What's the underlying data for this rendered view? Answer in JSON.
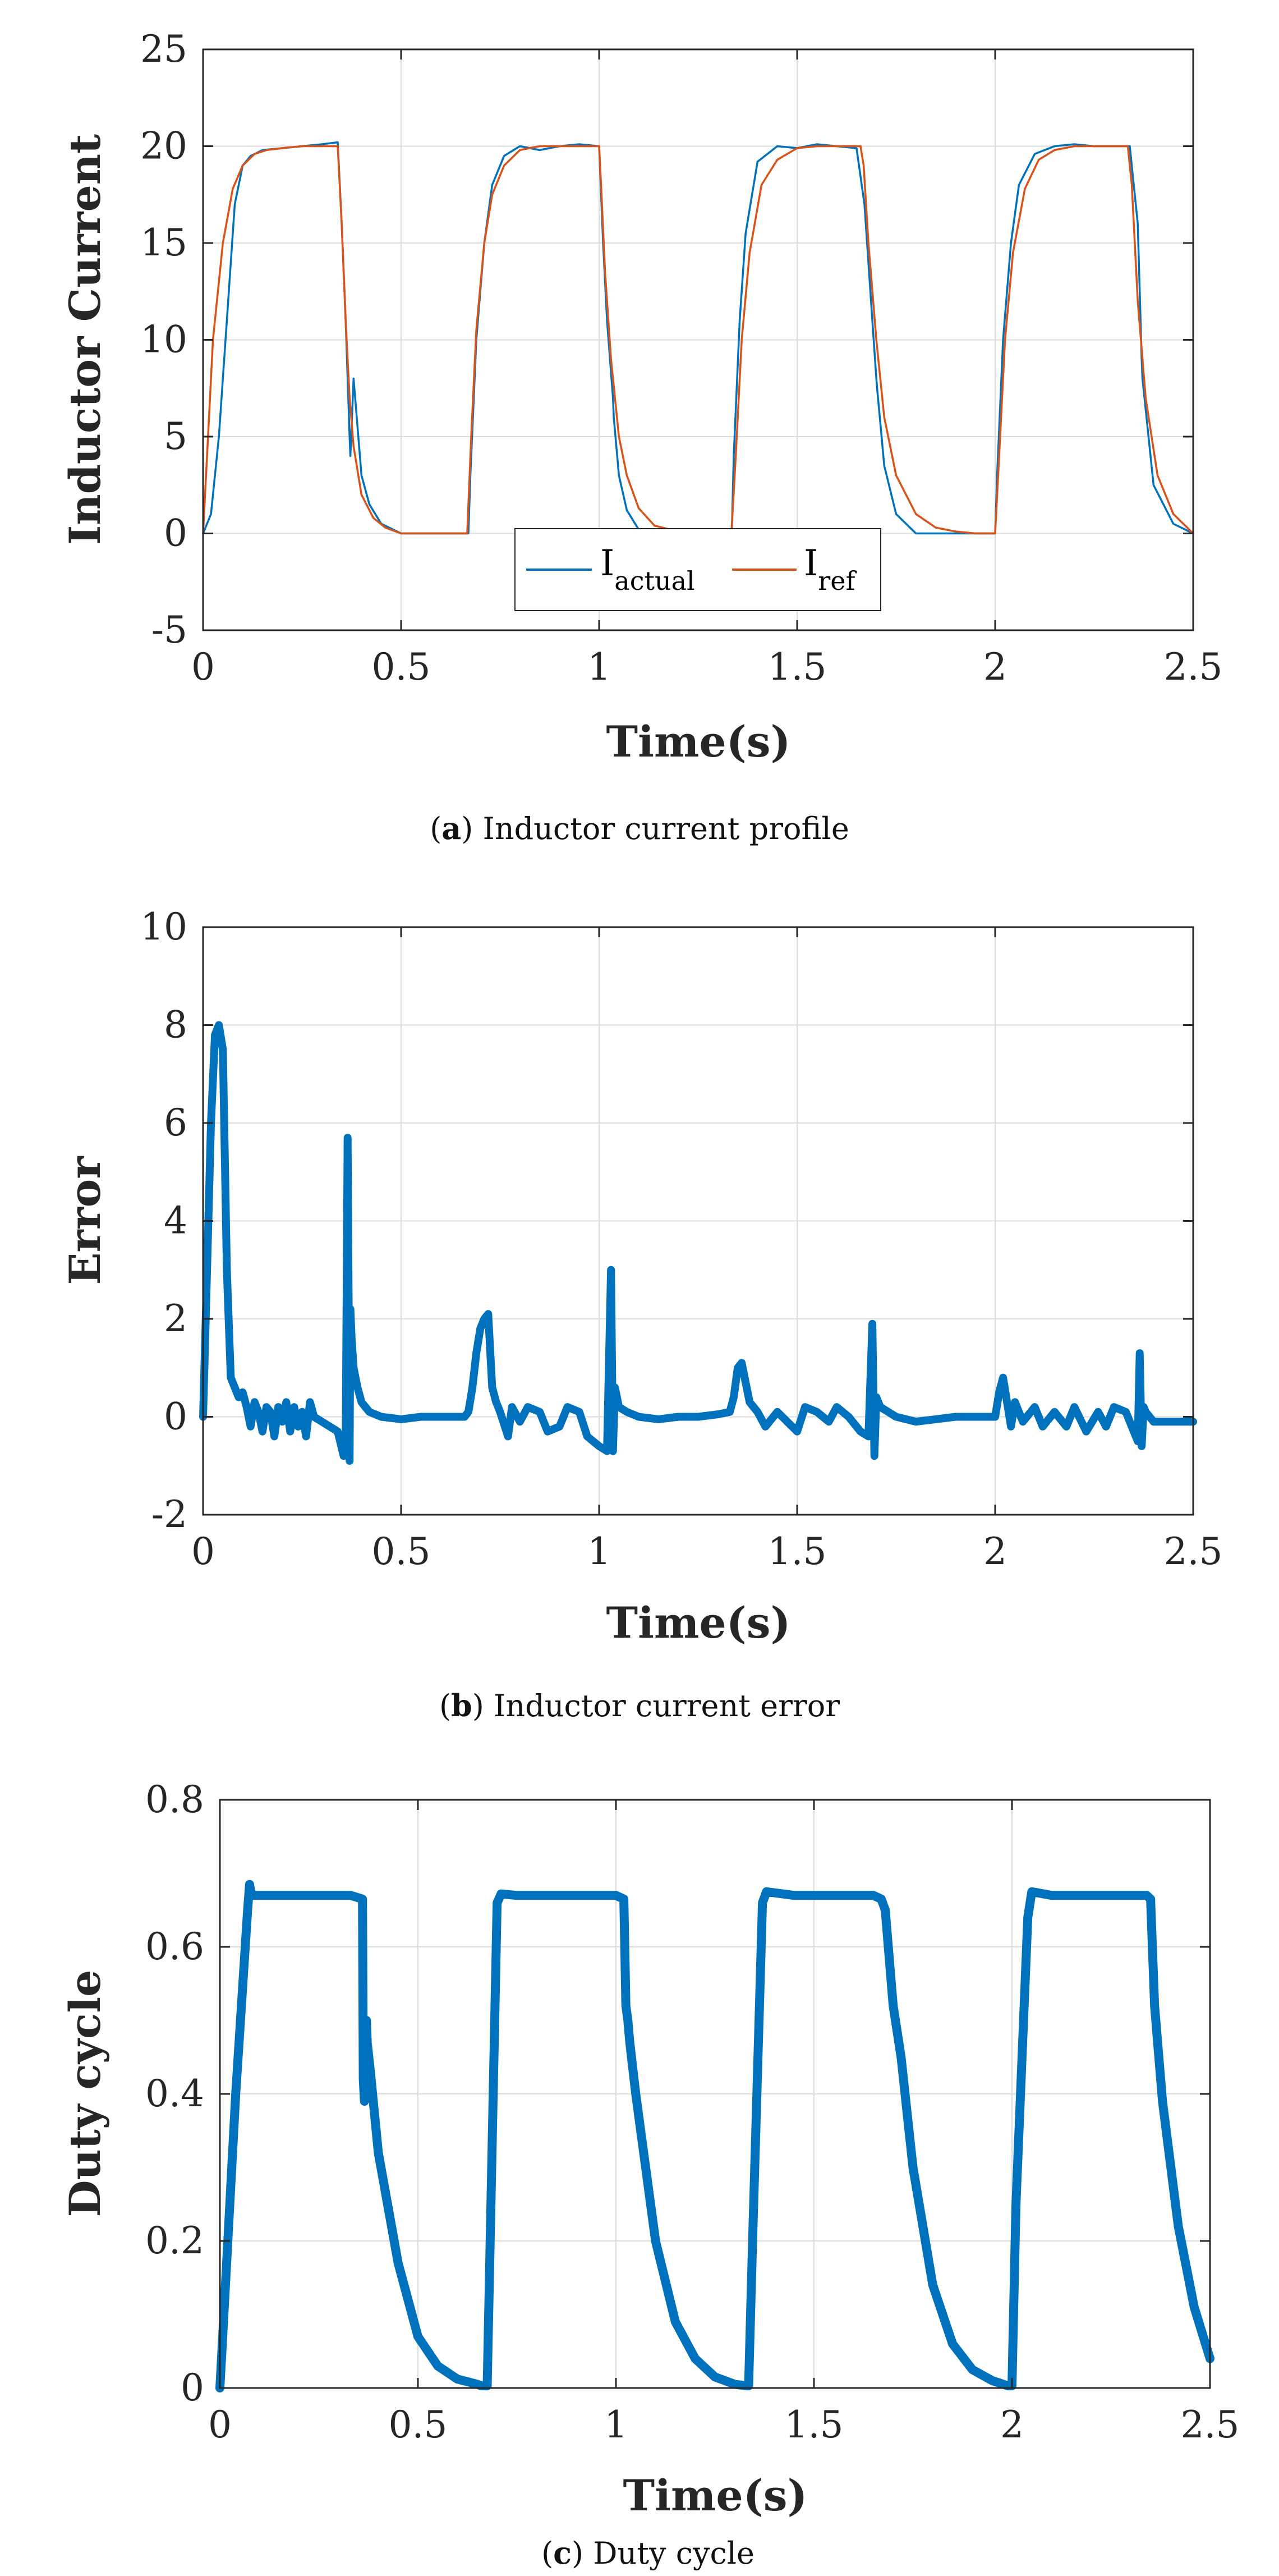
{
  "colors": {
    "actual": "#0072BD",
    "ref": "#D95319",
    "grid": "#dcdcdc",
    "axis": "#262626"
  },
  "chart_data": [
    {
      "id": "a",
      "type": "line",
      "caption": {
        "letter": "a",
        "text": "Inductor current profile"
      },
      "xlabel": "Time(s)",
      "ylabel": "Inductor Current",
      "xlim": [
        0,
        2.5
      ],
      "ylim": [
        -5,
        25
      ],
      "xticks": [
        "0",
        "0.5",
        "1",
        "1.5",
        "2",
        "2.5"
      ],
      "yticks": [
        "-5",
        "0",
        "5",
        "10",
        "15",
        "20",
        "25"
      ],
      "grid": true,
      "legend": {
        "placement": "bottom-center",
        "entries": [
          {
            "main": "I",
            "sub": "actual"
          },
          {
            "main": "I",
            "sub": "ref"
          }
        ]
      },
      "series": [
        {
          "name": "I_actual",
          "color": "#0072BD",
          "x": [
            0,
            0.02,
            0.04,
            0.06,
            0.08,
            0.1,
            0.12,
            0.15,
            0.2,
            0.25,
            0.3,
            0.34,
            0.35,
            0.36,
            0.37,
            0.372,
            0.38,
            0.4,
            0.42,
            0.45,
            0.5,
            0.55,
            0.6,
            0.67,
            0.675,
            0.69,
            0.71,
            0.73,
            0.76,
            0.8,
            0.85,
            0.9,
            0.95,
            1.0,
            1.01,
            1.02,
            1.035,
            1.037,
            1.05,
            1.07,
            1.1,
            1.15,
            1.2,
            1.25,
            1.3,
            1.335,
            1.34,
            1.355,
            1.37,
            1.4,
            1.45,
            1.5,
            1.55,
            1.6,
            1.65,
            1.67,
            1.69,
            1.7,
            1.702,
            1.72,
            1.75,
            1.8,
            1.85,
            1.9,
            1.95,
            2.0,
            2.005,
            2.02,
            2.04,
            2.06,
            2.1,
            2.15,
            2.2,
            2.25,
            2.3,
            2.34,
            2.36,
            2.37,
            2.372,
            2.4,
            2.45,
            2.5
          ],
          "y": [
            0,
            1,
            5,
            11,
            17,
            19,
            19.5,
            19.8,
            19.9,
            20,
            20.1,
            20.2,
            16,
            11,
            5,
            4,
            8,
            3,
            1.5,
            0.5,
            0,
            0,
            0,
            0,
            3,
            10,
            15,
            18,
            19.5,
            20,
            19.8,
            20,
            20.1,
            20,
            15,
            11,
            7,
            6,
            3,
            1.2,
            0.2,
            0,
            0,
            0,
            0,
            0,
            4,
            11,
            15.5,
            19.2,
            20,
            19.9,
            20.1,
            20,
            19.9,
            17,
            11,
            8,
            7.5,
            3.5,
            1,
            0,
            0,
            0,
            0,
            0,
            3,
            10,
            15,
            18,
            19.6,
            20,
            20.1,
            20,
            20,
            20,
            16,
            9,
            8,
            2.5,
            0.5,
            0
          ]
        },
        {
          "name": "I_ref",
          "color": "#D95319",
          "x": [
            0,
            0.01,
            0.025,
            0.05,
            0.075,
            0.1,
            0.13,
            0.16,
            0.2,
            0.25,
            0.3,
            0.34,
            0.35,
            0.36,
            0.37,
            0.38,
            0.4,
            0.43,
            0.46,
            0.5,
            0.55,
            0.6,
            0.667,
            0.677,
            0.69,
            0.71,
            0.73,
            0.76,
            0.8,
            0.85,
            0.9,
            0.95,
            1.0,
            1.005,
            1.015,
            1.03,
            1.05,
            1.07,
            1.1,
            1.14,
            1.2,
            1.25,
            1.3,
            1.334,
            1.345,
            1.36,
            1.38,
            1.41,
            1.45,
            1.5,
            1.55,
            1.6,
            1.66,
            1.668,
            1.68,
            1.7,
            1.72,
            1.75,
            1.8,
            1.85,
            1.9,
            1.95,
            2.0,
            2.01,
            2.025,
            2.045,
            2.075,
            2.11,
            2.15,
            2.2,
            2.25,
            2.3,
            2.335,
            2.345,
            2.36,
            2.38,
            2.41,
            2.45,
            2.5
          ],
          "y": [
            0,
            4,
            10,
            15,
            17.8,
            19,
            19.6,
            19.8,
            19.9,
            20,
            20,
            20,
            16,
            11,
            7,
            4.5,
            2,
            0.8,
            0.3,
            0,
            0,
            0,
            0,
            5,
            10.5,
            15,
            17.5,
            19,
            19.8,
            20,
            20,
            20,
            20,
            18,
            13.5,
            9,
            5,
            3,
            1.3,
            0.4,
            0.1,
            0,
            0,
            0,
            4,
            10,
            14.5,
            18,
            19.3,
            19.9,
            20,
            20,
            20,
            19,
            15,
            10,
            6,
            3,
            1,
            0.3,
            0.1,
            0,
            0,
            4,
            10,
            14.5,
            17.8,
            19.3,
            19.8,
            20,
            20,
            20,
            20,
            18,
            12,
            7,
            3,
            1,
            0
          ]
        }
      ]
    },
    {
      "id": "b",
      "type": "line",
      "caption": {
        "letter": "b",
        "text": "Inductor current error"
      },
      "xlabel": "Time(s)",
      "ylabel": "Error",
      "xlim": [
        0,
        2.5
      ],
      "ylim": [
        -2,
        10
      ],
      "xticks": [
        "0",
        "0.5",
        "1",
        "1.5",
        "2",
        "2.5"
      ],
      "yticks": [
        "-2",
        "0",
        "2",
        "4",
        "6",
        "8",
        "10"
      ],
      "grid": true,
      "series": [
        {
          "name": "Error",
          "color": "#0072BD",
          "x": [
            0,
            0.01,
            0.02,
            0.03,
            0.04,
            0.05,
            0.06,
            0.07,
            0.08,
            0.09,
            0.1,
            0.11,
            0.12,
            0.13,
            0.14,
            0.15,
            0.16,
            0.17,
            0.18,
            0.19,
            0.2,
            0.21,
            0.22,
            0.23,
            0.24,
            0.25,
            0.26,
            0.27,
            0.28,
            0.3,
            0.32,
            0.34,
            0.355,
            0.36,
            0.365,
            0.37,
            0.372,
            0.375,
            0.38,
            0.39,
            0.4,
            0.42,
            0.45,
            0.5,
            0.55,
            0.6,
            0.66,
            0.67,
            0.68,
            0.69,
            0.7,
            0.71,
            0.72,
            0.73,
            0.74,
            0.75,
            0.77,
            0.78,
            0.8,
            0.82,
            0.85,
            0.87,
            0.9,
            0.92,
            0.95,
            0.97,
            1.0,
            1.02,
            1.03,
            1.035,
            1.04,
            1.05,
            1.07,
            1.1,
            1.15,
            1.2,
            1.25,
            1.3,
            1.33,
            1.34,
            1.35,
            1.36,
            1.37,
            1.38,
            1.4,
            1.42,
            1.45,
            1.5,
            1.52,
            1.55,
            1.58,
            1.6,
            1.63,
            1.66,
            1.68,
            1.69,
            1.695,
            1.7,
            1.705,
            1.71,
            1.73,
            1.75,
            1.8,
            1.85,
            1.9,
            1.95,
            2.0,
            2.01,
            2.02,
            2.03,
            2.04,
            2.05,
            2.07,
            2.1,
            2.12,
            2.15,
            2.18,
            2.2,
            2.23,
            2.26,
            2.28,
            2.3,
            2.33,
            2.35,
            2.36,
            2.365,
            2.37,
            2.375,
            2.38,
            2.4,
            2.45,
            2.5
          ],
          "y": [
            0,
            3,
            6,
            7.8,
            8,
            7.5,
            3,
            0.8,
            0.6,
            0.4,
            0.5,
            0.2,
            -0.2,
            0.3,
            0.1,
            -0.3,
            0.2,
            0.1,
            -0.4,
            0.2,
            -0.1,
            0.3,
            -0.3,
            0.2,
            -0.2,
            0.1,
            -0.4,
            0.3,
            0,
            -0.1,
            -0.2,
            -0.3,
            -0.8,
            -0.6,
            5.7,
            -0.9,
            2.2,
            1.6,
            1,
            0.6,
            0.3,
            0.1,
            0,
            -0.05,
            0,
            0,
            0,
            0.1,
            0.6,
            1.3,
            1.8,
            2,
            2.1,
            0.6,
            0.3,
            0.1,
            -0.4,
            0.2,
            -0.1,
            0.2,
            0.1,
            -0.3,
            -0.2,
            0.2,
            0.1,
            -0.4,
            -0.6,
            -0.7,
            3,
            -0.7,
            0.6,
            0.2,
            0.1,
            0,
            -0.05,
            0,
            0,
            0.05,
            0.1,
            0.4,
            1,
            1.1,
            0.7,
            0.3,
            0.1,
            -0.2,
            0.1,
            -0.3,
            0.2,
            0.1,
            -0.1,
            0.2,
            0,
            -0.3,
            -0.4,
            1.9,
            -0.8,
            0.4,
            0.3,
            0.2,
            0.1,
            0,
            -0.1,
            -0.05,
            0,
            0,
            0,
            0.5,
            0.8,
            0.3,
            -0.2,
            0.3,
            -0.1,
            0.2,
            -0.2,
            0.1,
            -0.2,
            0.2,
            -0.3,
            0.1,
            -0.2,
            0.2,
            0.1,
            -0.3,
            -0.5,
            1.3,
            -0.6,
            0.2,
            0.1,
            -0.1,
            -0.1,
            -0.1
          ]
        }
      ]
    },
    {
      "id": "c",
      "type": "line",
      "caption": {
        "letter": "c",
        "text": "Duty cycle"
      },
      "xlabel": "Time(s)",
      "ylabel": "Duty cycle",
      "xlim": [
        0,
        2.5
      ],
      "ylim": [
        0,
        0.8
      ],
      "xticks": [
        "0",
        "0.5",
        "1",
        "1.5",
        "2",
        "2.5"
      ],
      "yticks": [
        "0",
        "0.2",
        "0.4",
        "0.6",
        "0.8"
      ],
      "grid": true,
      "series": [
        {
          "name": "Duty cycle",
          "color": "#0072BD",
          "x": [
            0,
            0.01,
            0.04,
            0.07,
            0.075,
            0.08,
            0.1,
            0.15,
            0.2,
            0.25,
            0.3,
            0.33,
            0.36,
            0.362,
            0.365,
            0.37,
            0.372,
            0.38,
            0.4,
            0.45,
            0.5,
            0.55,
            0.6,
            0.65,
            0.66,
            0.665,
            0.675,
            0.7,
            0.71,
            0.75,
            0.8,
            0.85,
            0.9,
            0.95,
            1.0,
            1.02,
            1.025,
            1.03,
            1.035,
            1.05,
            1.1,
            1.15,
            1.2,
            1.25,
            1.3,
            1.33,
            1.335,
            1.345,
            1.37,
            1.38,
            1.45,
            1.5,
            1.55,
            1.6,
            1.65,
            1.67,
            1.68,
            1.7,
            1.72,
            1.75,
            1.8,
            1.85,
            1.9,
            1.95,
            1.99,
            2.0,
            2.01,
            2.04,
            2.05,
            2.1,
            2.15,
            2.2,
            2.25,
            2.3,
            2.34,
            2.35,
            2.36,
            2.38,
            2.42,
            2.46,
            2.5
          ],
          "y": [
            0,
            0.1,
            0.4,
            0.65,
            0.685,
            0.67,
            0.67,
            0.67,
            0.67,
            0.67,
            0.67,
            0.67,
            0.665,
            0.42,
            0.39,
            0.5,
            0.47,
            0.43,
            0.32,
            0.17,
            0.07,
            0.03,
            0.012,
            0.005,
            0.003,
            0.003,
            0.003,
            0.66,
            0.672,
            0.67,
            0.67,
            0.67,
            0.67,
            0.67,
            0.67,
            0.665,
            0.52,
            0.5,
            0.47,
            0.4,
            0.2,
            0.09,
            0.04,
            0.015,
            0.005,
            0.003,
            0.003,
            0.2,
            0.66,
            0.675,
            0.67,
            0.67,
            0.67,
            0.67,
            0.67,
            0.665,
            0.65,
            0.52,
            0.45,
            0.3,
            0.14,
            0.06,
            0.025,
            0.01,
            0.003,
            0.003,
            0.25,
            0.64,
            0.675,
            0.67,
            0.67,
            0.67,
            0.67,
            0.67,
            0.67,
            0.665,
            0.52,
            0.39,
            0.22,
            0.11,
            0.04
          ]
        }
      ]
    }
  ]
}
